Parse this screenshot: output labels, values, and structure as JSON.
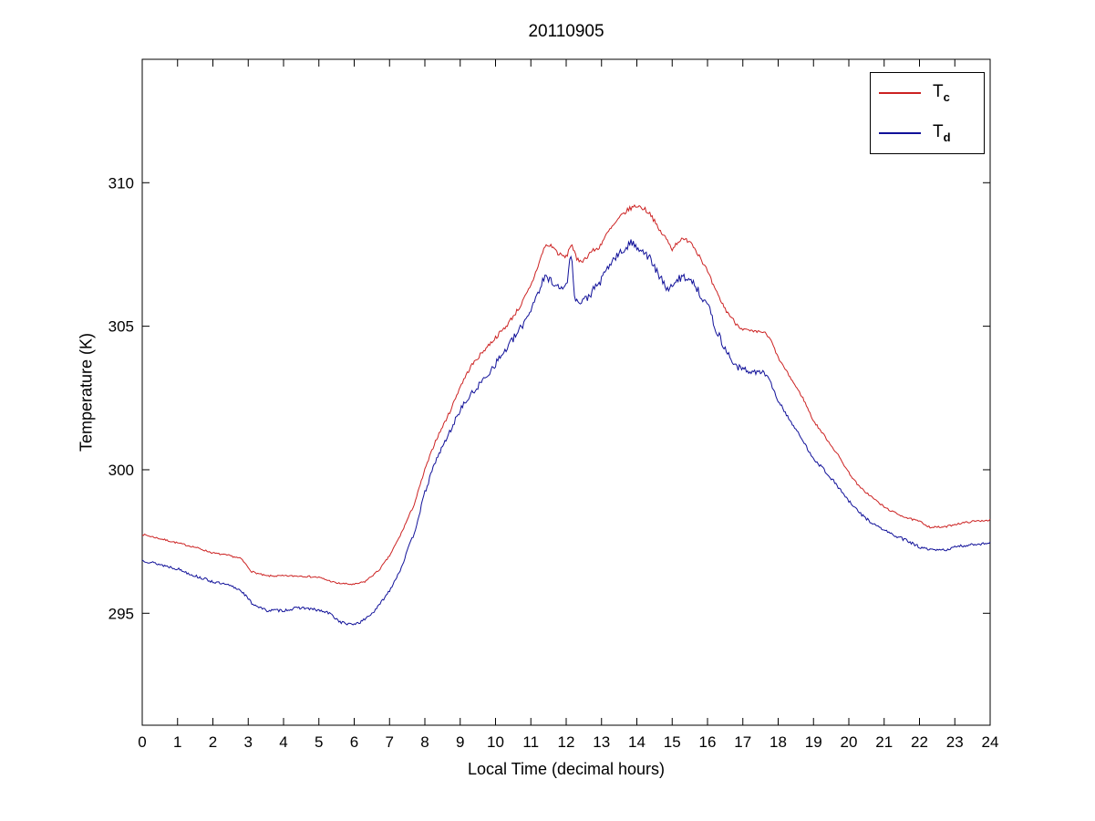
{
  "chart_data": {
    "type": "line",
    "title": "20110905",
    "xlabel": "Local Time (decimal hours)",
    "ylabel": "Temperature (K)",
    "xlim": [
      0,
      24
    ],
    "ylim": [
      291.1,
      314.3
    ],
    "x_ticks": [
      0,
      1,
      2,
      3,
      4,
      5,
      6,
      7,
      8,
      9,
      10,
      11,
      12,
      13,
      14,
      15,
      16,
      17,
      18,
      19,
      20,
      21,
      22,
      23,
      24
    ],
    "y_ticks": [
      295,
      300,
      305,
      310
    ],
    "grid": false,
    "legend_position": "top-right",
    "series": [
      {
        "name": "Tc",
        "label_main": "T",
        "label_sub": "c",
        "color": "#cc2222",
        "seed": 7,
        "x": [
          0,
          0.5,
          1,
          1.5,
          2,
          2.5,
          2.8,
          3.1,
          3.5,
          4,
          4.5,
          5,
          5.5,
          6,
          6.3,
          6.7,
          7,
          7.3,
          7.7,
          8,
          8.3,
          8.7,
          9,
          9.3,
          9.7,
          10,
          10.3,
          10.7,
          11,
          11.2,
          11.4,
          11.6,
          11.8,
          12,
          12.15,
          12.3,
          12.5,
          12.7,
          12.9,
          13,
          13.2,
          13.4,
          13.6,
          13.8,
          14,
          14.2,
          14.4,
          14.6,
          14.8,
          15,
          15.2,
          15.5,
          15.8,
          16,
          16.2,
          16.5,
          16.8,
          17,
          17.3,
          17.6,
          17.8,
          18,
          18.3,
          18.7,
          19,
          19.3,
          19.7,
          20,
          20.3,
          20.7,
          21,
          21.3,
          21.7,
          22,
          22.3,
          22.7,
          23,
          23.5,
          24
        ],
        "y": [
          297.75,
          297.6,
          297.45,
          297.3,
          297.1,
          297.0,
          296.9,
          296.45,
          296.3,
          296.3,
          296.3,
          296.25,
          296.05,
          296.0,
          296.1,
          296.5,
          297.0,
          297.7,
          298.8,
          300.0,
          301.0,
          302.0,
          302.9,
          303.6,
          304.2,
          304.6,
          305.0,
          305.7,
          306.4,
          307.1,
          307.8,
          307.8,
          307.5,
          307.4,
          307.9,
          307.3,
          307.3,
          307.6,
          307.7,
          307.9,
          308.3,
          308.6,
          308.9,
          309.1,
          309.2,
          309.1,
          308.9,
          308.4,
          308.1,
          307.7,
          308.0,
          308.0,
          307.4,
          306.9,
          306.3,
          305.6,
          305.1,
          304.9,
          304.8,
          304.8,
          304.5,
          303.9,
          303.3,
          302.5,
          301.7,
          301.2,
          300.5,
          299.9,
          299.4,
          299.0,
          298.7,
          298.5,
          298.3,
          298.2,
          298.0,
          298.0,
          298.1,
          298.2,
          298.25
        ],
        "noise_x": [
          0,
          7,
          9,
          11,
          16,
          18,
          24
        ],
        "noise_amp": [
          0.03,
          0.03,
          0.06,
          0.08,
          0.08,
          0.04,
          0.03
        ]
      },
      {
        "name": "Td",
        "label_main": "T",
        "label_sub": "d",
        "color": "#111199",
        "seed": 13,
        "x": [
          0,
          0.5,
          1,
          1.5,
          2,
          2.5,
          2.8,
          3.1,
          3.5,
          4,
          4.5,
          5,
          5.3,
          5.6,
          5.9,
          6.2,
          6.6,
          7,
          7.3,
          7.7,
          8,
          8.3,
          8.7,
          9,
          9.3,
          9.7,
          10,
          10.3,
          10.7,
          11,
          11.2,
          11.4,
          11.6,
          11.8,
          12,
          12.15,
          12.25,
          12.4,
          12.6,
          12.8,
          13,
          13.2,
          13.4,
          13.6,
          13.8,
          14,
          14.2,
          14.4,
          14.6,
          14.8,
          15,
          15.2,
          15.5,
          15.8,
          16,
          16.2,
          16.5,
          16.8,
          17,
          17.3,
          17.6,
          17.8,
          18,
          18.3,
          18.7,
          19,
          19.3,
          19.7,
          20,
          20.3,
          20.7,
          21,
          21.3,
          21.7,
          22,
          22.3,
          22.7,
          23,
          23.5,
          24
        ],
        "y": [
          296.85,
          296.7,
          296.55,
          296.3,
          296.1,
          295.95,
          295.8,
          295.35,
          295.1,
          295.1,
          295.2,
          295.1,
          295.0,
          294.7,
          294.6,
          294.7,
          295.1,
          295.8,
          296.5,
          297.8,
          299.2,
          300.3,
          301.3,
          302.1,
          302.6,
          303.2,
          303.7,
          304.2,
          304.9,
          305.6,
          306.2,
          306.7,
          306.6,
          306.3,
          306.4,
          307.6,
          305.9,
          305.8,
          306.0,
          306.3,
          306.6,
          307.1,
          307.4,
          307.6,
          307.9,
          307.8,
          307.6,
          307.3,
          306.8,
          306.4,
          306.3,
          306.7,
          306.7,
          306.1,
          305.8,
          305.0,
          304.2,
          303.6,
          303.5,
          303.4,
          303.4,
          303.0,
          302.4,
          301.8,
          301.0,
          300.4,
          300.0,
          299.4,
          298.9,
          298.5,
          298.1,
          297.9,
          297.7,
          297.5,
          297.3,
          297.2,
          297.2,
          297.3,
          297.4,
          297.45
        ],
        "noise_x": [
          0,
          7,
          9,
          11,
          16,
          18,
          24
        ],
        "noise_amp": [
          0.05,
          0.05,
          0.1,
          0.15,
          0.15,
          0.06,
          0.05
        ]
      }
    ]
  }
}
